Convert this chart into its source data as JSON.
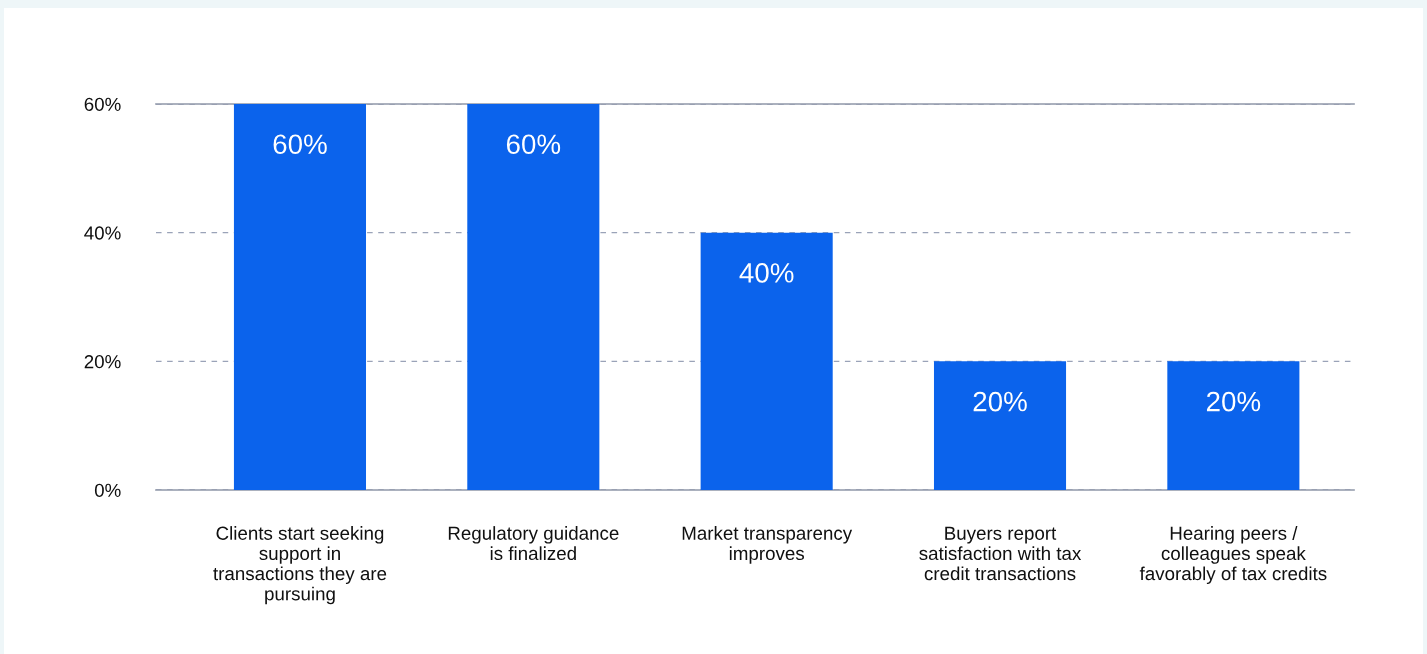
{
  "chart_data": {
    "type": "bar",
    "categories": [
      "Clients start seeking\nsupport in\ntransactions they are\npursuing",
      "Regulatory guidance\nis finalized",
      "Market transparency\nimproves",
      "Buyers report\nsatisfaction with tax\ncredit transactions",
      "Hearing peers /\ncolleagues speak\nfavorably of tax credits"
    ],
    "values": [
      60,
      60,
      40,
      20,
      20
    ],
    "value_labels": [
      "60%",
      "60%",
      "40%",
      "20%",
      "20%"
    ],
    "color": "#0b63ec",
    "ylim": [
      0,
      60
    ],
    "yticks": [
      {
        "value": 0,
        "label": "0%"
      },
      {
        "value": 20,
        "label": "20%"
      },
      {
        "value": 40,
        "label": "40%"
      },
      {
        "value": 60,
        "label": "60%"
      }
    ],
    "grid": "y",
    "legend": false
  }
}
